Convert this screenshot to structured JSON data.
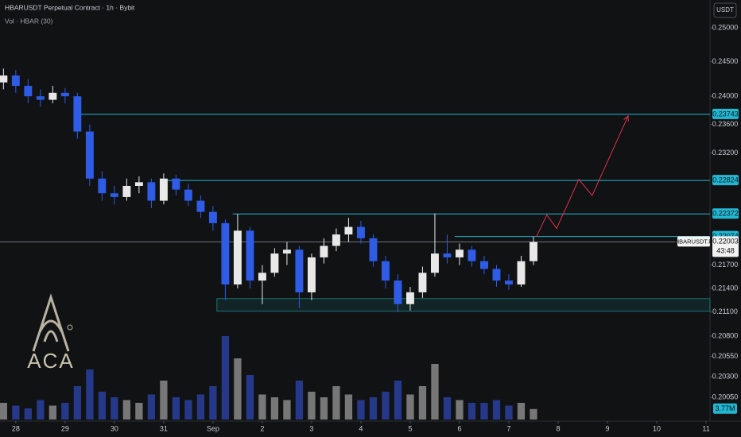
{
  "chart_data": {
    "type": "candlestick",
    "title": "HBARUSDT Perpetual Contract · 1h · Bybit",
    "subtitle": "Vol · HBAR (30)",
    "currency": "USDT",
    "logo_text": "ACA",
    "symbol": "HBARUSDT.P",
    "countdown": "43:48",
    "x": [
      27.75,
      28,
      28.25,
      28.5,
      28.75,
      29,
      29.25,
      29.5,
      29.75,
      30,
      30.25,
      30.5,
      30.75,
      31,
      31.25,
      31.5,
      31.75,
      32,
      32.25,
      32.5,
      32.75,
      33,
      33.25,
      33.5,
      33.75,
      34,
      34.25,
      34.5,
      34.75,
      35,
      35.25,
      35.5,
      35.75,
      36,
      36.25,
      36.5,
      36.75,
      37,
      37.25,
      37.5,
      37.75,
      38,
      38.25,
      38.5
    ],
    "open": [
      0.242,
      0.243,
      0.2415,
      0.24,
      0.2395,
      0.2405,
      0.24,
      0.235,
      0.2285,
      0.2265,
      0.226,
      0.2275,
      0.228,
      0.2255,
      0.2285,
      0.227,
      0.2255,
      0.224,
      0.2225,
      0.2145,
      0.2215,
      0.215,
      0.216,
      0.2185,
      0.219,
      0.2135,
      0.218,
      0.2195,
      0.221,
      0.222,
      0.2205,
      0.2175,
      0.215,
      0.212,
      0.2135,
      0.216,
      0.2185,
      0.218,
      0.219,
      0.2175,
      0.2165,
      0.215,
      0.2145,
      0.2175
    ],
    "high": [
      0.244,
      0.2438,
      0.2425,
      0.241,
      0.2415,
      0.2412,
      0.2405,
      0.236,
      0.2295,
      0.2275,
      0.2285,
      0.2288,
      0.2285,
      0.2292,
      0.229,
      0.2278,
      0.2262,
      0.2248,
      0.223,
      0.2237,
      0.222,
      0.217,
      0.2192,
      0.22,
      0.2195,
      0.2185,
      0.2205,
      0.2218,
      0.2232,
      0.2228,
      0.221,
      0.2182,
      0.2158,
      0.2142,
      0.2168,
      0.2238,
      0.221,
      0.2198,
      0.2195,
      0.2182,
      0.217,
      0.2158,
      0.2182,
      0.2207
    ],
    "low": [
      0.241,
      0.2405,
      0.239,
      0.2385,
      0.239,
      0.239,
      0.234,
      0.2275,
      0.2255,
      0.225,
      0.2255,
      0.2265,
      0.2245,
      0.225,
      0.2262,
      0.2248,
      0.2232,
      0.2215,
      0.2125,
      0.214,
      0.214,
      0.212,
      0.2155,
      0.217,
      0.2115,
      0.2125,
      0.2172,
      0.2188,
      0.22,
      0.2198,
      0.2168,
      0.214,
      0.211,
      0.2112,
      0.2128,
      0.2155,
      0.2172,
      0.217,
      0.2168,
      0.2158,
      0.2142,
      0.2138,
      0.2142,
      0.217
    ],
    "close": [
      0.243,
      0.2415,
      0.24,
      0.2395,
      0.2405,
      0.24,
      0.235,
      0.2285,
      0.2265,
      0.226,
      0.2275,
      0.228,
      0.2255,
      0.2285,
      0.227,
      0.2255,
      0.224,
      0.2225,
      0.2145,
      0.2215,
      0.215,
      0.216,
      0.2185,
      0.219,
      0.2135,
      0.218,
      0.2195,
      0.221,
      0.222,
      0.2205,
      0.2175,
      0.215,
      0.212,
      0.2135,
      0.216,
      0.2185,
      0.218,
      0.219,
      0.2175,
      0.2165,
      0.215,
      0.2145,
      0.2175,
      0.22
    ],
    "up_color": "#e8e8e8",
    "down_color": "#2e5ce6",
    "volume": {
      "values": [
        6,
        5,
        4,
        7,
        5,
        6,
        12,
        18,
        10,
        8,
        7,
        6,
        9,
        14,
        8,
        7,
        9,
        12,
        30,
        22,
        16,
        9,
        8,
        7,
        14,
        10,
        8,
        12,
        9,
        7,
        8,
        10,
        14,
        9,
        12,
        20,
        8,
        7,
        6,
        6,
        7,
        5,
        6,
        3.77
      ],
      "value_labels": [
        null,
        null,
        null,
        null,
        null,
        null,
        null,
        null,
        null,
        null,
        null,
        null,
        null,
        null,
        null,
        null,
        null,
        null,
        null,
        null,
        null,
        null,
        null,
        null,
        null,
        null,
        null,
        null,
        null,
        null,
        null,
        null,
        null,
        null,
        null,
        null,
        null,
        null,
        null,
        null,
        null,
        null,
        null,
        "3.77M"
      ],
      "up_color": "#8a8a8a",
      "down_color": "#2a3f9e",
      "vlim": [
        0,
        40
      ]
    },
    "xlim": [
      27.68,
      42.08
    ],
    "xticks": [
      {
        "value": 28,
        "label": "28"
      },
      {
        "value": 29,
        "label": "29"
      },
      {
        "value": 30,
        "label": "30"
      },
      {
        "value": 31,
        "label": "31"
      },
      {
        "value": 32,
        "label": "Sep"
      },
      {
        "value": 33,
        "label": "2"
      },
      {
        "value": 34,
        "label": "3"
      },
      {
        "value": 35,
        "label": "4"
      },
      {
        "value": 36,
        "label": "5"
      },
      {
        "value": 37,
        "label": "6"
      },
      {
        "value": 38,
        "label": "7"
      },
      {
        "value": 39,
        "label": "8"
      },
      {
        "value": 40,
        "label": "9"
      },
      {
        "value": 41,
        "label": "10"
      },
      {
        "value": 42,
        "label": "11"
      }
    ],
    "ylim": [
      0.1977,
      0.2542
    ],
    "log_scale": true,
    "yticks": [
      {
        "value": 0.25,
        "label": "0.25000"
      },
      {
        "value": 0.245,
        "label": "0.24500"
      },
      {
        "value": 0.24,
        "label": "0.24000"
      },
      {
        "value": 0.236,
        "label": "0.23600"
      },
      {
        "value": 0.232,
        "label": "0.23200"
      },
      {
        "value": 0.217,
        "label": "0.21700"
      },
      {
        "value": 0.214,
        "label": "0.21400"
      },
      {
        "value": 0.211,
        "label": "0.21100"
      },
      {
        "value": 0.208,
        "label": "0.20800"
      },
      {
        "value": 0.2055,
        "label": "0.20550"
      },
      {
        "value": 0.203,
        "label": "0.20300"
      },
      {
        "value": 0.2005,
        "label": "0.20050"
      }
    ],
    "levels": [
      {
        "value": 0.23743,
        "start": 29.2
      },
      {
        "value": 0.22824,
        "start": 31.06
      },
      {
        "value": 0.22372,
        "start": 32.4
      },
      {
        "value": 0.22074,
        "start": 36.9
      }
    ],
    "level_color": "#22b8d4",
    "current_price": 0.22003,
    "zone": {
      "low": 0.2111,
      "high": 0.2127,
      "start": 32.08
    },
    "zone_color": "#1d8a8a",
    "projection": {
      "x": [
        38.56,
        38.77,
        38.97,
        39.42,
        39.69,
        40.42
      ],
      "y": [
        0.2207,
        0.2236,
        0.2218,
        0.2284,
        0.2262,
        0.2372
      ]
    },
    "projection_color": "#e0314b"
  }
}
